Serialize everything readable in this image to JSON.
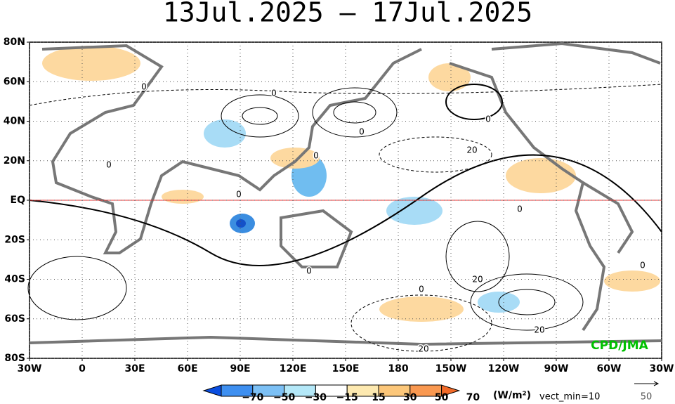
{
  "title": "13Jul.2025 – 17Jul.2025",
  "lat_labels": [
    "80N",
    "60N",
    "40N",
    "20N",
    "EQ",
    "20S",
    "40S",
    "60S",
    "80S"
  ],
  "lon_labels": [
    "30W",
    "0",
    "30E",
    "60E",
    "90E",
    "120E",
    "150E",
    "180",
    "150W",
    "120W",
    "90W",
    "60W",
    "30W"
  ],
  "colorbar": {
    "labels": [
      "−70",
      "−50",
      "−30",
      "−15",
      "15",
      "30",
      "50",
      "70"
    ],
    "units": "(W/m²)",
    "vector_note": "vect_min=10",
    "reference_vector": "50"
  },
  "contour_labels": [
    "0",
    "0",
    "0",
    "0",
    "0",
    "0",
    "0",
    "0",
    "0",
    "0",
    "0",
    "20",
    "20",
    "20",
    "20"
  ],
  "credit": "CPD/JMA"
}
